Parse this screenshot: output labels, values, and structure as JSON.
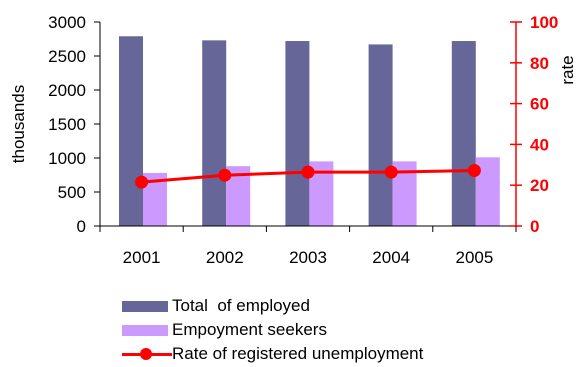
{
  "chart_data": {
    "type": "bar",
    "categories": [
      "2001",
      "2002",
      "2003",
      "2004",
      "2005"
    ],
    "series": [
      {
        "name": "Total  of employed",
        "type": "bar",
        "axis": "left",
        "color": "#666699",
        "values": [
          2790,
          2730,
          2720,
          2670,
          2720
        ]
      },
      {
        "name": "Empoyment seekers",
        "type": "bar",
        "axis": "left",
        "color": "#cc99ff",
        "values": [
          780,
          880,
          950,
          950,
          1010
        ]
      },
      {
        "name": "Rate of registered unemployment",
        "type": "line",
        "axis": "right",
        "color": "#ff0000",
        "values": [
          21.5,
          24.9,
          26.4,
          26.4,
          27.2
        ]
      }
    ],
    "ylabel_left": "thousands",
    "ylabel_right": "rate",
    "ylim_left": [
      0,
      3000
    ],
    "ylim_right": [
      0,
      100
    ],
    "yticks_left": [
      "0",
      "500",
      "1000",
      "1500",
      "2000",
      "2500",
      "3000"
    ],
    "yticks_right": [
      "0",
      "20",
      "40",
      "60",
      "80",
      "100"
    ],
    "grid": false,
    "legend_position": "bottom"
  }
}
